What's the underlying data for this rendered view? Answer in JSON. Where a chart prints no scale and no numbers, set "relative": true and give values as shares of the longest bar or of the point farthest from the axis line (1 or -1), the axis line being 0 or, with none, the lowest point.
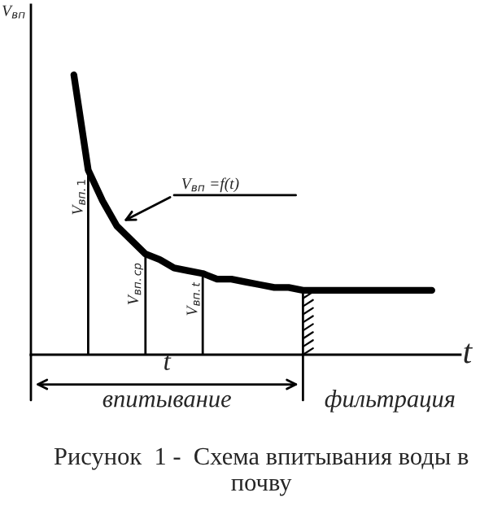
{
  "chart_data": {
    "type": "line",
    "relative": true,
    "xlabel": "t",
    "ylabel": "V$_{вп}$",
    "categories": [
      null,
      null,
      null,
      null,
      null,
      null,
      null,
      null,
      null,
      null,
      null,
      null,
      null,
      null,
      null,
      null,
      null,
      null,
      null,
      null,
      null,
      null,
      null,
      null,
      null,
      null
    ],
    "series": [
      {
        "color": "#000000",
        "values": [
          1,
          0.66,
          0.55,
          0.46,
          0.41,
          0.36,
          0.34,
          0.31,
          0.3,
          0.29,
          0.27,
          0.27,
          0.26,
          0.25,
          0.24,
          0.24,
          0.23,
          0.23,
          0.23,
          0.23,
          0.23,
          0.23,
          0.23,
          0.23,
          0.23,
          0.23
        ]
      }
    ],
    "annotations": [
      {
        "text": "V$_{вп.1}$",
        "y": 0.66
      },
      {
        "text": "V$_{вп.ср}$",
        "y": 0.36
      },
      {
        "text": "V$_{вп.t}$",
        "y": 0.29
      },
      "V$_{вп}$ =f(t)",
      "t",
      "впитывание",
      "фильтрация",
      "Рисунок  1 -  Схема впитывания воды в почву"
    ],
    "marker": "none",
    "line_style": "solid"
  }
}
